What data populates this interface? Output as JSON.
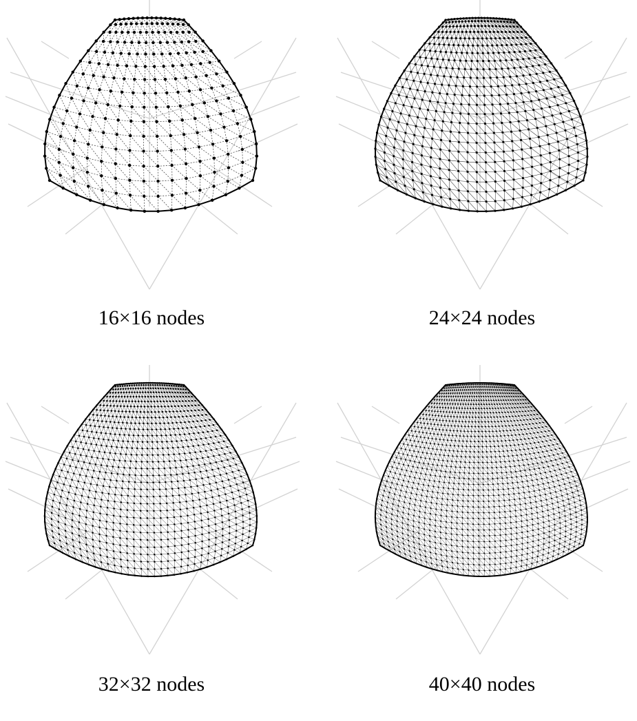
{
  "panels": [
    {
      "caption": "16×16 nodes",
      "nodes": 16
    },
    {
      "caption": "24×24 nodes",
      "nodes": 24
    },
    {
      "caption": "32×32 nodes",
      "nodes": 32
    },
    {
      "caption": "40×40 nodes",
      "nodes": 40
    }
  ],
  "colors": {
    "grid": "#d2d2d2",
    "edge": "#000000",
    "mesh": "#333333",
    "node": "#000000",
    "background": "#ffffff"
  }
}
